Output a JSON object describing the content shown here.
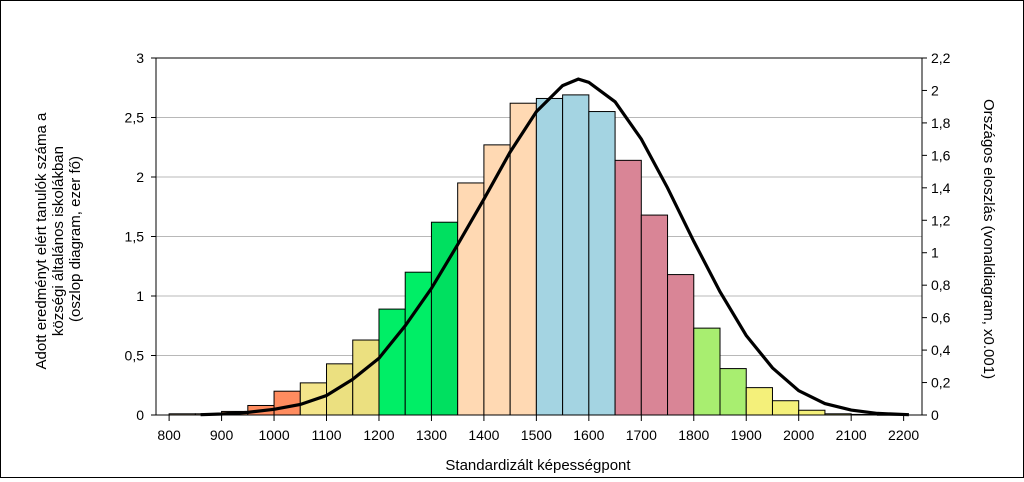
{
  "chart_data": {
    "type": "bar",
    "xlabel": "Standardizált képességpont",
    "ylabel_lines": [
      "Adott eredményt elért tanulók száma a",
      "községi általános iskolákban",
      "(oszlop diagram, ezer fő)"
    ],
    "y2label": "Országos eloszlás (vonaldiagram, x0.001)",
    "xlim": [
      775,
      2235
    ],
    "ylim": [
      0,
      3
    ],
    "y2lim": [
      0,
      2.2
    ],
    "x_ticks": [
      "800",
      "900",
      "1000",
      "1100",
      "1200",
      "1300",
      "1400",
      "1500",
      "1600",
      "1700",
      "1800",
      "1900",
      "2000",
      "2100",
      "2200"
    ],
    "y_ticks": [
      "0",
      "0,5",
      "1",
      "1,5",
      "2",
      "2,5",
      "3"
    ],
    "y2_ticks": [
      "0",
      "0,2",
      "0,4",
      "0,6",
      "0,8",
      "1",
      "1,2",
      "1,4",
      "1,6",
      "1,8",
      "2",
      "2,2"
    ],
    "grid": true,
    "bar_width": 50,
    "bars": [
      {
        "x": 825,
        "value": 0.01,
        "color": "#ffd9b3"
      },
      {
        "x": 875,
        "value": 0.01,
        "color": "#ffd9b3"
      },
      {
        "x": 925,
        "value": 0.03,
        "color": "#ffb27a"
      },
      {
        "x": 975,
        "value": 0.08,
        "color": "#ff8c5f"
      },
      {
        "x": 1025,
        "value": 0.2,
        "color": "#ff8c5f"
      },
      {
        "x": 1075,
        "value": 0.27,
        "color": "#f4e58a"
      },
      {
        "x": 1125,
        "value": 0.43,
        "color": "#ebe080"
      },
      {
        "x": 1175,
        "value": 0.63,
        "color": "#ebe080"
      },
      {
        "x": 1225,
        "value": 0.89,
        "color": "#00ee66"
      },
      {
        "x": 1275,
        "value": 1.2,
        "color": "#00ee66"
      },
      {
        "x": 1325,
        "value": 1.62,
        "color": "#00e060"
      },
      {
        "x": 1375,
        "value": 1.95,
        "color": "#ffd9b3"
      },
      {
        "x": 1425,
        "value": 2.27,
        "color": "#ffd9b3"
      },
      {
        "x": 1475,
        "value": 2.62,
        "color": "#ffd9b3"
      },
      {
        "x": 1525,
        "value": 2.66,
        "color": "#a4d4e2"
      },
      {
        "x": 1575,
        "value": 2.69,
        "color": "#a4d4e2"
      },
      {
        "x": 1625,
        "value": 2.55,
        "color": "#a4d4e2"
      },
      {
        "x": 1675,
        "value": 2.14,
        "color": "#d98596"
      },
      {
        "x": 1725,
        "value": 1.68,
        "color": "#d98596"
      },
      {
        "x": 1775,
        "value": 1.18,
        "color": "#d98596"
      },
      {
        "x": 1825,
        "value": 0.73,
        "color": "#a8ee70"
      },
      {
        "x": 1875,
        "value": 0.39,
        "color": "#a8ee70"
      },
      {
        "x": 1925,
        "value": 0.23,
        "color": "#f4f07a"
      },
      {
        "x": 1975,
        "value": 0.12,
        "color": "#f4f07a"
      },
      {
        "x": 2025,
        "value": 0.04,
        "color": "#f4f07a"
      },
      {
        "x": 2075,
        "value": 0.01,
        "color": "#f4f07a"
      },
      {
        "x": 2125,
        "value": 0.005,
        "color": "#f4f07a"
      },
      {
        "x": 2175,
        "value": 0.003,
        "color": "#f4f07a"
      }
    ],
    "line": {
      "name": "Országos eloszlás",
      "color": "#000000",
      "x": [
        860,
        900,
        950,
        1000,
        1050,
        1100,
        1150,
        1200,
        1250,
        1300,
        1350,
        1400,
        1450,
        1500,
        1550,
        1580,
        1600,
        1650,
        1700,
        1750,
        1800,
        1850,
        1900,
        1950,
        2000,
        2050,
        2100,
        2150,
        2210
      ],
      "y": [
        0.002,
        0.006,
        0.016,
        0.035,
        0.065,
        0.12,
        0.22,
        0.35,
        0.55,
        0.78,
        1.05,
        1.33,
        1.62,
        1.87,
        2.03,
        2.07,
        2.05,
        1.93,
        1.7,
        1.4,
        1.07,
        0.76,
        0.49,
        0.29,
        0.15,
        0.07,
        0.03,
        0.01,
        0.002
      ]
    }
  }
}
